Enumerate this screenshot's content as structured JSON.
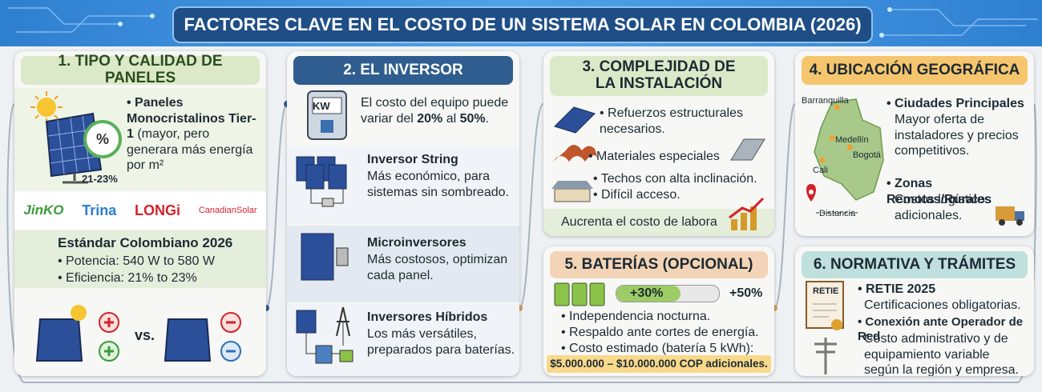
{
  "header": {
    "title": "FACTORES CLAVE EN EL COSTO DE UN SISTEMA SOLAR EN COLOMBIA (2026)"
  },
  "panels": [
    {
      "heading": "1. TIPO Y CALIDAD DE PANELES",
      "feature": {
        "title": "• Paneles Monocristalinos Tier-1",
        "text": " (mayor, pero generara más energía por m²"
      },
      "efficiency_badge": "21-23%",
      "brands": [
        "JinKO",
        "Trina",
        "LONGi",
        "CanadianSolar"
      ],
      "standard": {
        "title": "Estándar Colombiano 2026",
        "items": [
          "• Potencia: 540 W to 580 W",
          "• Eficiencia: 21% to 23%"
        ]
      },
      "comparison": "vs."
    },
    {
      "heading": "2. EL INVERSOR",
      "icon_label": "KW",
      "intro": [
        "El costo del equipo puede variar del ",
        "20%",
        " al ",
        "50%",
        "."
      ],
      "types": [
        {
          "title": "Inversor String",
          "text": "Más económico, para sistemas sin sombreado."
        },
        {
          "title": "Microinversores",
          "text": "Más costosos, optimizan cada panel."
        },
        {
          "title": "Inversores Híbridos",
          "text": "Los más versátiles, preparados para baterías."
        }
      ]
    },
    {
      "heading": "3. COMPLEJIDAD DE LA INSTALACIÓN",
      "items": [
        "• Refuerzos estructurales necesarios.",
        "• Materiales especiales",
        "• Techos con alta inclinación.",
        "• Difícil acceso."
      ],
      "footer": "Aucrenta el costo de labora"
    },
    {
      "heading": "4. UBICACIÓN GEOGRÁFICA",
      "map_labels": [
        "Barranquilla",
        "Medellín",
        "Bogotá",
        "Cali",
        "Distancia"
      ],
      "items": [
        {
          "title": "• Ciudades Principales",
          "text": "Mayor oferta de instaladores y precios competitivos."
        },
        {
          "title": "• Zonas Remotas/Rurales",
          "text": "Costos logísticos adicionales."
        }
      ]
    },
    {
      "heading": "5. BATERÍAS (OPCIONAL)",
      "bar_labels": [
        "+30%",
        "+50%"
      ],
      "items": [
        "• Independencia nocturna.",
        "• Respaldo ante cortes de energía.",
        "• Costo estimado (batería 5 kWh):"
      ],
      "highlight": "$5.000.000 – $10.000.000 COP adicionales."
    },
    {
      "heading": "6. NORMATIVA Y TRÁMITES",
      "icon_label": "RETIE",
      "items": [
        {
          "title": "• RETIE 2025",
          "text": "Certificaciones obligatorias."
        },
        {
          "title": "• Conexión ante Operador de Red",
          "text": "Costo administrativo y de equipamiento variable según la región y empresa."
        }
      ]
    }
  ]
}
